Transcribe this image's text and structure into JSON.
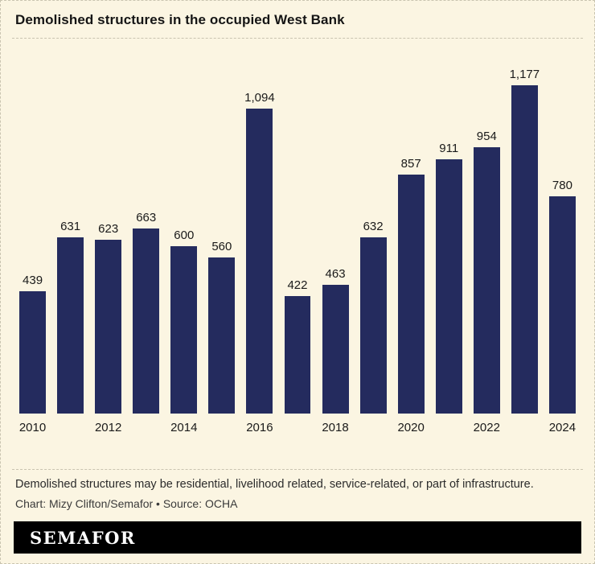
{
  "page": {
    "title": "Demolished structures in the occupied West Bank",
    "note": "Demolished structures may be residential, livelihood related, service-related, or part of infrastructure.",
    "credit": "Chart: Mizy Clifton/Semafor • Source: OCHA",
    "brand": "SEMAFOR"
  },
  "colors": {
    "background": "#fbf5e2",
    "bar": "#242b5e",
    "text": "#1a1a1a",
    "dashed_line": "#c9c4b0",
    "brand_bar": "#000000",
    "brand_text": "#ffffff"
  },
  "chart_data": {
    "type": "bar",
    "title": "Demolished structures in the occupied West Bank",
    "categories": [
      "2010",
      "2011",
      "2012",
      "2013",
      "2014",
      "2015",
      "2016",
      "2017",
      "2018",
      "2019",
      "2020",
      "2021",
      "2022",
      "2023",
      "2024"
    ],
    "values": [
      439,
      631,
      623,
      663,
      600,
      560,
      1094,
      422,
      463,
      632,
      857,
      911,
      954,
      1177,
      780
    ],
    "value_labels": [
      "439",
      "631",
      "623",
      "663",
      "600",
      "560",
      "1,094",
      "422",
      "463",
      "632",
      "857",
      "911",
      "954",
      "1,177",
      "780"
    ],
    "x_tick_labels": [
      "2010",
      "",
      "2012",
      "",
      "2014",
      "",
      "2016",
      "",
      "2018",
      "",
      "2020",
      "",
      "2022",
      "",
      "2024"
    ],
    "xlabel": "",
    "ylabel": "",
    "ylim": [
      0,
      1177
    ],
    "grid": false,
    "legend": false,
    "bar_color": "#242b5e"
  }
}
